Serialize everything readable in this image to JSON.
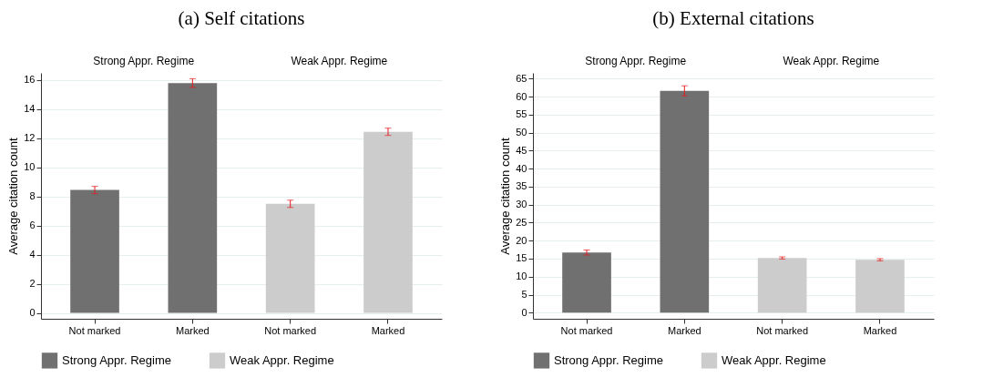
{
  "chart_data": [
    {
      "type": "bar",
      "title": "(a) Self citations",
      "ylabel": "Average citation count",
      "categories": [
        "Not marked",
        "Marked",
        "Not marked",
        "Marked"
      ],
      "ylim": [
        -0.4,
        16.5
      ],
      "yticks": [
        0,
        2,
        4,
        6,
        8,
        10,
        12,
        14,
        16
      ],
      "grid": "y",
      "legend": "bottom",
      "series": [
        {
          "name": "Strong Appr. Regime",
          "color": "#707070",
          "values": [
            8.45,
            15.8,
            null,
            null
          ],
          "errors": [
            0.25,
            0.3,
            null,
            null
          ]
        },
        {
          "name": "Weak Appr. Regime",
          "color": "#cccccc",
          "values": [
            null,
            null,
            7.5,
            12.45
          ],
          "errors": [
            null,
            null,
            0.25,
            0.25
          ]
        }
      ]
    },
    {
      "type": "bar",
      "title": "(b) External citations",
      "ylabel": "Average citation count",
      "categories": [
        "Not marked",
        "Marked",
        "Not marked",
        "Marked"
      ],
      "ylim": [
        -1.7,
        66.6
      ],
      "yticks": [
        0,
        5,
        10,
        15,
        20,
        25,
        30,
        35,
        40,
        45,
        50,
        55,
        60,
        65
      ],
      "grid": "y",
      "legend": "bottom",
      "series": [
        {
          "name": "Strong Appr. Regime",
          "color": "#707070",
          "values": [
            16.7,
            61.6,
            null,
            null
          ],
          "errors": [
            0.7,
            1.4,
            null,
            null
          ]
        },
        {
          "name": "Weak Appr. Regime",
          "color": "#cccccc",
          "values": [
            null,
            null,
            15.2,
            14.7
          ],
          "errors": [
            null,
            null,
            0.3,
            0.3
          ]
        }
      ]
    }
  ]
}
